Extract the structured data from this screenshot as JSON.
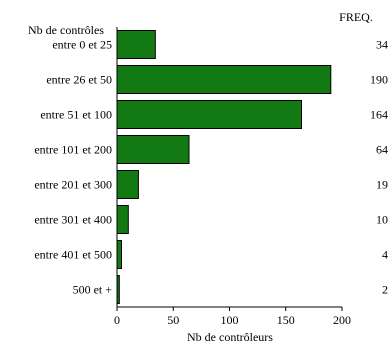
{
  "chart_data": {
    "type": "bar",
    "orientation": "horizontal",
    "category_axis_title": "Nb de contrôles",
    "freq_header": "FREQ.",
    "xlabel": "Nb de contrôleurs",
    "categories": [
      "entre 0 et 25",
      "entre 26 et 50",
      "entre 51 et 100",
      "entre 101 et 200",
      "entre 201 et 300",
      "entre 301 et 400",
      "entre 401 et 500",
      "500 et +"
    ],
    "values": [
      34,
      190,
      164,
      64,
      19,
      10,
      4,
      2
    ],
    "freq_labels": [
      "34",
      "190",
      "164",
      "64",
      "19",
      "10",
      "4",
      "2"
    ],
    "xlim": [
      0,
      200
    ],
    "xticks": [
      0,
      50,
      100,
      150,
      200
    ],
    "bar_color": "#137a13",
    "bar_edge_color": "#000000",
    "grid": false
  }
}
